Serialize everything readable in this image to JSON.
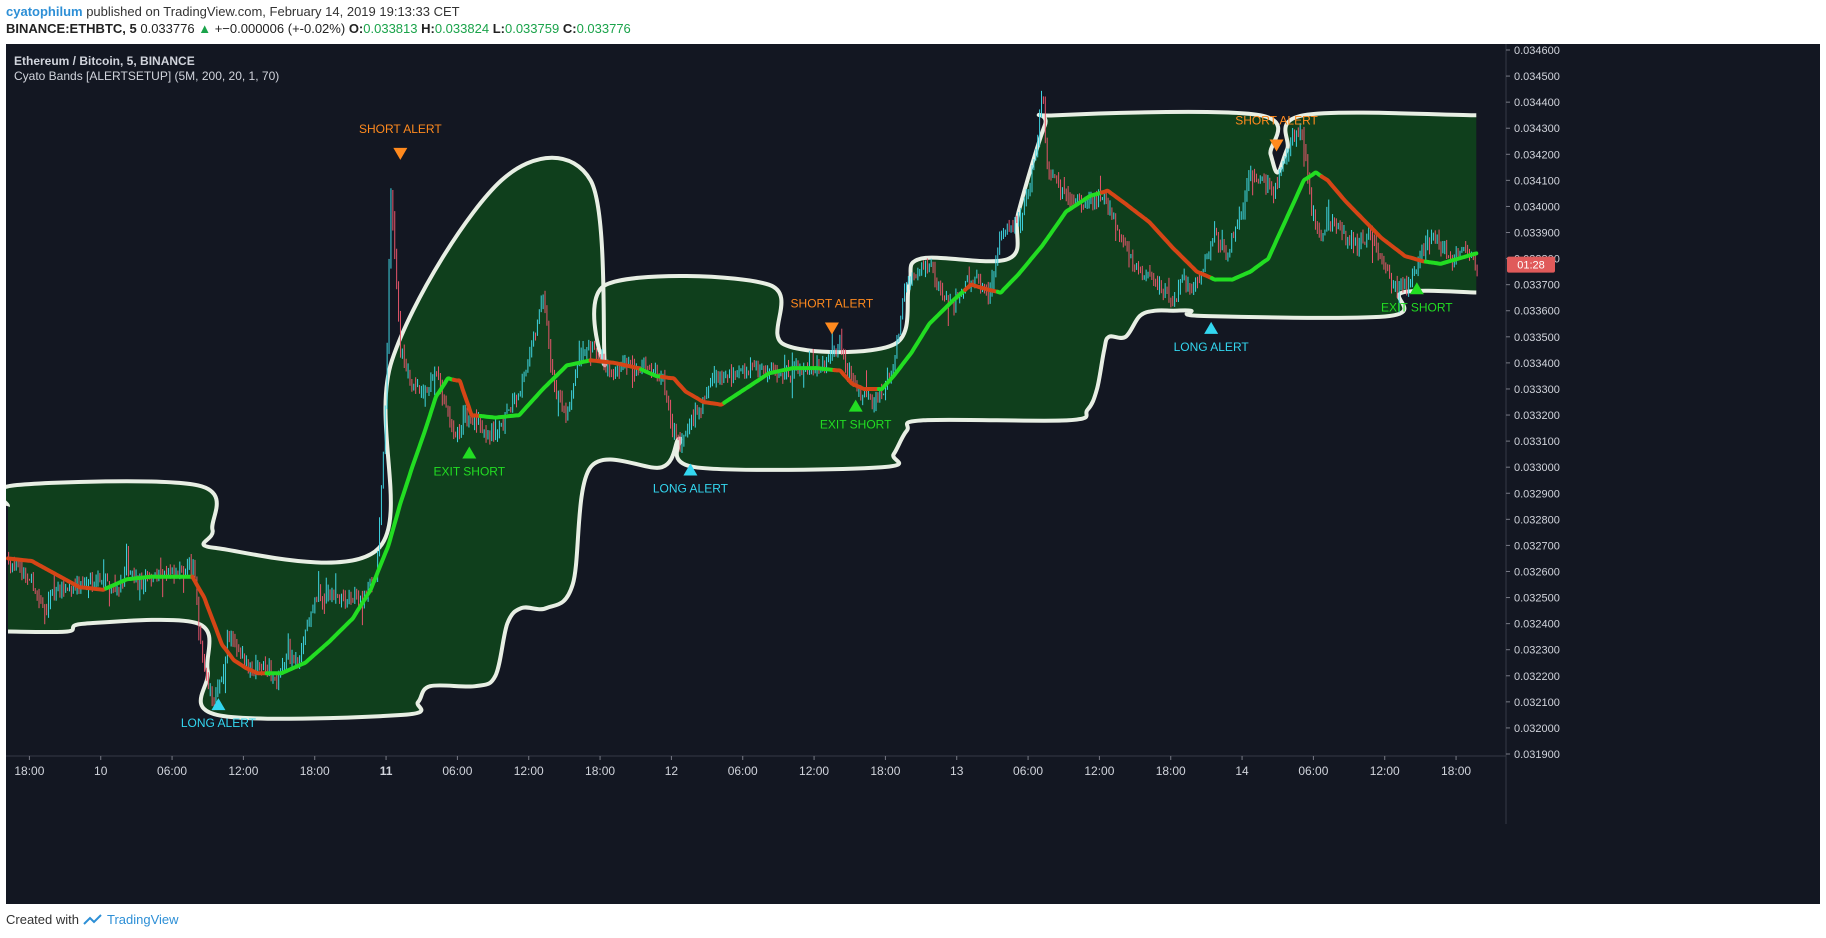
{
  "header": {
    "user": "cyatophilum",
    "published": "published on TradingView.com, February 14, 2019 19:13:33 CET",
    "symbol": "BINANCE:ETHBTC, 5",
    "last": "0.033776",
    "change": "+−0.000006 (+-0.02%)",
    "o_label": "O:",
    "o_value": "0.033813",
    "h_label": "H:",
    "h_value": "0.033824",
    "l_label": "L:",
    "l_value": "0.033759",
    "c_label": "C:",
    "c_value": "0.033776"
  },
  "legend": {
    "title": "Ethereum / Bitcoin, 5, BINANCE",
    "indicator": "Cyato Bands [ALERTSETUP] (5M, 200, 20, 1, 70)"
  },
  "price_badge": {
    "value": "01:28",
    "color": "#e05a5a"
  },
  "footer": {
    "created": "Created with",
    "brand": "TradingView",
    "logo_icon": "tradingview-logo-icon"
  },
  "colors": {
    "background": "#131722",
    "band_fill": "#0f3f1c",
    "band_edge": "#e8efe4",
    "ma_up": "#22dd22",
    "ma_down": "#d54516",
    "candle_up": "#3fd3e0",
    "candle_down": "#e5556b",
    "short_alert": "#ff8a1e",
    "long_alert": "#33d7f0",
    "exit_short": "#22dd22"
  },
  "chart_data": {
    "type": "line",
    "title": "Ethereum / Bitcoin, 5, BINANCE",
    "ylim": [
      0.0319,
      0.0346
    ],
    "y_ticks": [
      "0.034600",
      "0.034500",
      "0.034400",
      "0.034300",
      "0.034200",
      "0.034100",
      "0.034000",
      "0.033900",
      "0.033800",
      "0.033700",
      "0.033600",
      "0.033500",
      "0.033400",
      "0.033300",
      "0.033200",
      "0.033100",
      "0.033000",
      "0.032900",
      "0.032800",
      "0.032700",
      "0.032600",
      "0.032500",
      "0.032400",
      "0.032300",
      "0.032200",
      "0.032100",
      "0.032000",
      "0.031900"
    ],
    "x_ticks": [
      {
        "label": "18:00",
        "t": 0.8,
        "bold": false
      },
      {
        "label": "10",
        "t": 6.8,
        "bold": false
      },
      {
        "label": "06:00",
        "t": 12.8,
        "bold": false
      },
      {
        "label": "12:00",
        "t": 18.8,
        "bold": false
      },
      {
        "label": "18:00",
        "t": 24.8,
        "bold": false
      },
      {
        "label": "11",
        "t": 30.8,
        "bold": true
      },
      {
        "label": "06:00",
        "t": 36.8,
        "bold": false
      },
      {
        "label": "12:00",
        "t": 42.8,
        "bold": false
      },
      {
        "label": "18:00",
        "t": 48.8,
        "bold": false
      },
      {
        "label": "12",
        "t": 54.8,
        "bold": false
      },
      {
        "label": "06:00",
        "t": 60.8,
        "bold": false
      },
      {
        "label": "12:00",
        "t": 66.8,
        "bold": false
      },
      {
        "label": "18:00",
        "t": 72.8,
        "bold": false
      },
      {
        "label": "13",
        "t": 78.8,
        "bold": false
      },
      {
        "label": "06:00",
        "t": 84.8,
        "bold": false
      },
      {
        "label": "12:00",
        "t": 90.8,
        "bold": false
      },
      {
        "label": "18:00",
        "t": 96.8,
        "bold": false
      },
      {
        "label": "14",
        "t": 102.8,
        "bold": false
      },
      {
        "label": "06:00",
        "t": 108.8,
        "bold": false
      },
      {
        "label": "12:00",
        "t": 114.8,
        "bold": false
      },
      {
        "label": "18:00",
        "t": 120.8,
        "bold": false
      }
    ],
    "xlim": [
      -1,
      125
    ],
    "upper_band": [
      [
        -1,
        0.03285
      ],
      [
        -0.5,
        0.03293
      ],
      [
        15,
        0.03293
      ],
      [
        16.2,
        0.03276
      ],
      [
        16.5,
        0.03269
      ],
      [
        30.2,
        0.03269
      ],
      [
        31.3,
        0.03341
      ],
      [
        40.5,
        0.0341
      ],
      [
        48,
        0.0341
      ],
      [
        49.2,
        0.0334
      ],
      [
        49.3,
        0.0337
      ],
      [
        63,
        0.0337
      ],
      [
        64.3,
        0.03347
      ],
      [
        73.5,
        0.03347
      ],
      [
        74.8,
        0.0337
      ],
      [
        75.8,
        0.0338
      ],
      [
        83.2,
        0.0338
      ],
      [
        84,
        0.03398
      ],
      [
        86.2,
        0.03431
      ],
      [
        87.2,
        0.03435
      ],
      [
        104.3,
        0.03435
      ],
      [
        105.2,
        0.0342
      ],
      [
        105.8,
        0.03413
      ],
      [
        106.6,
        0.03422
      ],
      [
        108,
        0.03435
      ],
      [
        122.5,
        0.03435
      ]
    ],
    "lower_band": [
      [
        -1,
        0.03237
      ],
      [
        4,
        0.03237
      ],
      [
        5.5,
        0.0324
      ],
      [
        15,
        0.0324
      ],
      [
        15.8,
        0.03222
      ],
      [
        16.6,
        0.03205
      ],
      [
        32.2,
        0.03205
      ],
      [
        33.5,
        0.0321
      ],
      [
        34.5,
        0.03216
      ],
      [
        38.3,
        0.03216
      ],
      [
        40,
        0.0322
      ],
      [
        41,
        0.0324
      ],
      [
        42.2,
        0.03246
      ],
      [
        44.3,
        0.03246
      ],
      [
        46.5,
        0.03255
      ],
      [
        48,
        0.033
      ],
      [
        54,
        0.033
      ],
      [
        55.5,
        0.03311
      ],
      [
        56.8,
        0.033
      ],
      [
        72.5,
        0.033
      ],
      [
        73.5,
        0.03305
      ],
      [
        74.6,
        0.03314
      ],
      [
        76,
        0.03318
      ],
      [
        88.2,
        0.03318
      ],
      [
        89.8,
        0.03322
      ],
      [
        90.6,
        0.0333
      ],
      [
        91.2,
        0.03345
      ],
      [
        91.6,
        0.0335
      ],
      [
        93,
        0.0335
      ],
      [
        94.2,
        0.03358
      ],
      [
        95.5,
        0.0336
      ],
      [
        97,
        0.0336
      ],
      [
        98.5,
        0.0336
      ],
      [
        99.6,
        0.03358
      ],
      [
        115.2,
        0.03358
      ],
      [
        116.3,
        0.03367
      ],
      [
        122.5,
        0.03367
      ]
    ],
    "series": [
      {
        "type": "moving_average",
        "values": [
          [
            -1,
            0.03265
          ],
          [
            1,
            0.03264
          ],
          [
            3,
            0.03259
          ],
          [
            5,
            0.03254
          ],
          [
            7,
            0.03253
          ],
          [
            9,
            0.03257
          ],
          [
            11,
            0.03258
          ],
          [
            13,
            0.03258
          ],
          [
            14.5,
            0.03258
          ],
          [
            15.5,
            0.0325
          ],
          [
            17,
            0.03232
          ],
          [
            18,
            0.03226
          ],
          [
            19,
            0.03223
          ],
          [
            20,
            0.03221
          ],
          [
            22,
            0.03221
          ],
          [
            24,
            0.03225
          ],
          [
            26,
            0.03233
          ],
          [
            28,
            0.03242
          ],
          [
            29.5,
            0.03253
          ],
          [
            31,
            0.0327
          ],
          [
            32,
            0.03286
          ],
          [
            33,
            0.033
          ],
          [
            34,
            0.03313
          ],
          [
            35,
            0.03327
          ],
          [
            36,
            0.03334
          ],
          [
            37,
            0.03333
          ],
          [
            38,
            0.0332
          ],
          [
            40,
            0.03319
          ],
          [
            42,
            0.0332
          ],
          [
            44,
            0.0333
          ],
          [
            46,
            0.03339
          ],
          [
            48,
            0.03341
          ],
          [
            50,
            0.0334
          ],
          [
            52,
            0.03338
          ],
          [
            53.5,
            0.03335
          ],
          [
            55,
            0.03334
          ],
          [
            56,
            0.03329
          ],
          [
            57.5,
            0.03325
          ],
          [
            59,
            0.03324
          ],
          [
            61,
            0.0333
          ],
          [
            63,
            0.03336
          ],
          [
            65,
            0.03338
          ],
          [
            67,
            0.03338
          ],
          [
            69,
            0.03337
          ],
          [
            70,
            0.03332
          ],
          [
            71,
            0.0333
          ],
          [
            72.5,
            0.0333
          ],
          [
            73.5,
            0.03335
          ],
          [
            75,
            0.03344
          ],
          [
            76.5,
            0.03355
          ],
          [
            78.5,
            0.03364
          ],
          [
            80,
            0.0337
          ],
          [
            81.5,
            0.03368
          ],
          [
            82.5,
            0.03367
          ],
          [
            84,
            0.03374
          ],
          [
            86,
            0.03385
          ],
          [
            88,
            0.03398
          ],
          [
            90,
            0.03404
          ],
          [
            91.5,
            0.03406
          ],
          [
            93,
            0.03401
          ],
          [
            95,
            0.03394
          ],
          [
            97,
            0.03384
          ],
          [
            99,
            0.03375
          ],
          [
            100.5,
            0.03372
          ],
          [
            102,
            0.03372
          ],
          [
            103.5,
            0.03375
          ],
          [
            105,
            0.0338
          ],
          [
            106.5,
            0.03395
          ],
          [
            108,
            0.0341
          ],
          [
            109,
            0.03413
          ],
          [
            110,
            0.0341
          ],
          [
            111.5,
            0.03402
          ],
          [
            113,
            0.03395
          ],
          [
            114.5,
            0.03388
          ],
          [
            116.5,
            0.03381
          ],
          [
            118,
            0.03379
          ],
          [
            119.5,
            0.03378
          ],
          [
            121,
            0.0338
          ],
          [
            122.5,
            0.03382
          ]
        ]
      }
    ],
    "ma_down_segments": [
      [
        -1,
        7
      ],
      [
        14.5,
        20.5
      ],
      [
        36.5,
        38.5
      ],
      [
        48,
        52
      ],
      [
        54,
        59
      ],
      [
        68.5,
        72
      ],
      [
        79.5,
        82
      ],
      [
        91,
        100
      ],
      [
        109.5,
        118
      ]
    ],
    "price_anchors": [
      [
        -1,
        0.03265
      ],
      [
        1,
        0.03256
      ],
      [
        2,
        0.03245
      ],
      [
        3,
        0.03252
      ],
      [
        5,
        0.03255
      ],
      [
        7,
        0.03258
      ],
      [
        8,
        0.03252
      ],
      [
        9,
        0.0326
      ],
      [
        10,
        0.03256
      ],
      [
        12,
        0.0326
      ],
      [
        13,
        0.03258
      ],
      [
        14,
        0.03262
      ],
      [
        14.6,
        0.03262
      ],
      [
        15,
        0.0324
      ],
      [
        15.6,
        0.0322
      ],
      [
        16.2,
        0.0321
      ],
      [
        17,
        0.03218
      ],
      [
        17.5,
        0.03236
      ],
      [
        18.5,
        0.03228
      ],
      [
        19.5,
        0.03222
      ],
      [
        20.5,
        0.03226
      ],
      [
        21.5,
        0.03218
      ],
      [
        22.5,
        0.03228
      ],
      [
        23.5,
        0.03225
      ],
      [
        24,
        0.03238
      ],
      [
        25,
        0.0325
      ],
      [
        27,
        0.0325
      ],
      [
        29,
        0.0325
      ],
      [
        30,
        0.0326
      ],
      [
        30.4,
        0.0329
      ],
      [
        30.8,
        0.0333
      ],
      [
        31.2,
        0.03404
      ],
      [
        31.6,
        0.0338
      ],
      [
        32,
        0.03345
      ],
      [
        33,
        0.0333
      ],
      [
        34,
        0.03328
      ],
      [
        35,
        0.03335
      ],
      [
        36,
        0.0332
      ],
      [
        36.6,
        0.0331
      ],
      [
        37.5,
        0.0332
      ],
      [
        39,
        0.03315
      ],
      [
        40,
        0.03312
      ],
      [
        41,
        0.0332
      ],
      [
        42,
        0.0333
      ],
      [
        43,
        0.03345
      ],
      [
        44,
        0.03365
      ],
      [
        45,
        0.0333
      ],
      [
        46,
        0.0332
      ],
      [
        47,
        0.0334
      ],
      [
        48,
        0.03345
      ],
      [
        50,
        0.03336
      ],
      [
        51,
        0.0334
      ],
      [
        53,
        0.03338
      ],
      [
        54,
        0.03336
      ],
      [
        54.8,
        0.03315
      ],
      [
        55.5,
        0.03308
      ],
      [
        56.5,
        0.03318
      ],
      [
        57.5,
        0.03325
      ],
      [
        58.5,
        0.03335
      ],
      [
        60,
        0.03336
      ],
      [
        62,
        0.03338
      ],
      [
        64,
        0.03336
      ],
      [
        66,
        0.03338
      ],
      [
        68,
        0.0334
      ],
      [
        69,
        0.03348
      ],
      [
        69.5,
        0.03335
      ],
      [
        70.5,
        0.0333
      ],
      [
        71.5,
        0.03325
      ],
      [
        72.5,
        0.03328
      ],
      [
        73.5,
        0.0334
      ],
      [
        74.5,
        0.0337
      ],
      [
        75.5,
        0.03375
      ],
      [
        76.5,
        0.03378
      ],
      [
        77.5,
        0.03367
      ],
      [
        78.5,
        0.03362
      ],
      [
        79.5,
        0.0337
      ],
      [
        80.5,
        0.03372
      ],
      [
        81.5,
        0.03365
      ],
      [
        82.5,
        0.0339
      ],
      [
        83.5,
        0.03392
      ],
      [
        84.5,
        0.034
      ],
      [
        85.5,
        0.0342
      ],
      [
        86,
        0.03448
      ],
      [
        86.4,
        0.03415
      ],
      [
        87,
        0.0341
      ],
      [
        88,
        0.03405
      ],
      [
        89.5,
        0.034
      ],
      [
        91,
        0.03405
      ],
      [
        92,
        0.03395
      ],
      [
        93,
        0.03385
      ],
      [
        94,
        0.03375
      ],
      [
        95,
        0.03373
      ],
      [
        96,
        0.03368
      ],
      [
        97,
        0.03362
      ],
      [
        97.8,
        0.03372
      ],
      [
        98.5,
        0.03368
      ],
      [
        99.5,
        0.03375
      ],
      [
        100.5,
        0.0339
      ],
      [
        101.5,
        0.0338
      ],
      [
        102.5,
        0.03395
      ],
      [
        103.5,
        0.03412
      ],
      [
        104.5,
        0.0341
      ],
      [
        105.5,
        0.03405
      ],
      [
        106.5,
        0.0342
      ],
      [
        107.5,
        0.0343
      ],
      [
        108,
        0.03425
      ],
      [
        108.6,
        0.034
      ],
      [
        109.3,
        0.0339
      ],
      [
        110.5,
        0.03395
      ],
      [
        111.5,
        0.03388
      ],
      [
        112.5,
        0.03385
      ],
      [
        113.5,
        0.0339
      ],
      [
        114.5,
        0.0338
      ],
      [
        115.5,
        0.0337
      ],
      [
        116.5,
        0.03368
      ],
      [
        117.5,
        0.03376
      ],
      [
        118.5,
        0.0339
      ],
      [
        119.5,
        0.03385
      ],
      [
        120.5,
        0.0338
      ],
      [
        121.5,
        0.03385
      ],
      [
        122.5,
        0.03377
      ]
    ],
    "alerts": [
      {
        "type": "SHORT ALERT",
        "t": 32.0,
        "price": 0.034198,
        "dir": "down",
        "label_dx": 0
      },
      {
        "type": "LONG ALERT",
        "t": 16.7,
        "price": 0.032095,
        "dir": "up",
        "label_dx": 0
      },
      {
        "type": "EXIT SHORT",
        "t": 37.8,
        "price": 0.03306,
        "dir": "up",
        "label_dx": 0
      },
      {
        "type": "LONG ALERT",
        "t": 56.4,
        "price": 0.032995,
        "dir": "up",
        "label_dx": 0
      },
      {
        "type": "SHORT ALERT",
        "t": 68.3,
        "price": 0.033528,
        "dir": "down",
        "label_dx": 0
      },
      {
        "type": "EXIT SHORT",
        "t": 70.3,
        "price": 0.03324,
        "dir": "up",
        "label_dx": 0
      },
      {
        "type": "SHORT ALERT",
        "t": 105.7,
        "price": 0.03423,
        "dir": "down",
        "label_dx": 0
      },
      {
        "type": "LONG ALERT",
        "t": 100.2,
        "price": 0.033538,
        "dir": "up",
        "label_dx": 0
      },
      {
        "type": "EXIT SHORT",
        "t": 117.5,
        "price": 0.03369,
        "dir": "up",
        "label_dx": 0
      }
    ]
  }
}
